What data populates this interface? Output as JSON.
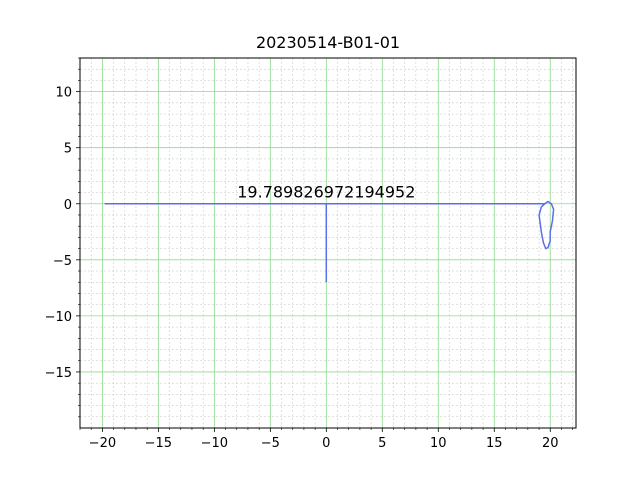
{
  "chart_data": {
    "type": "line",
    "title": "20230514-B01-01",
    "xlabel": "",
    "ylabel": "",
    "xlim": [
      -22.0,
      22.3
    ],
    "ylim": [
      -20.0,
      13.0
    ],
    "x_ticks": [
      -20,
      -15,
      -10,
      -5,
      0,
      5,
      10,
      15,
      20
    ],
    "x_tick_labels": [
      "−20",
      "−15",
      "−10",
      "−5",
      "0",
      "5",
      "10",
      "15",
      "20"
    ],
    "y_ticks": [
      10,
      5,
      0,
      -5,
      -10,
      -15
    ],
    "y_tick_labels": [
      "10",
      "5",
      "0",
      "−5",
      "−10",
      "−15"
    ],
    "grid": {
      "major": true,
      "minor": true,
      "major_color": "#8fd98f",
      "minor_color": "#c0c0c0"
    },
    "annotation": {
      "text": "19.789826972194952",
      "x": 0.0,
      "y": 0.2
    },
    "series": [
      {
        "color": "#5b6fe8",
        "points": [
          [
            -19.8,
            0.0
          ],
          [
            19.5,
            0.0
          ],
          [
            19.8,
            0.2
          ],
          [
            20.1,
            0.0
          ],
          [
            20.3,
            -0.5
          ],
          [
            20.2,
            -1.5
          ],
          [
            20.0,
            -2.5
          ],
          [
            20.0,
            -3.3
          ],
          [
            19.8,
            -3.9
          ],
          [
            19.6,
            -4.0
          ],
          [
            19.4,
            -3.5
          ],
          [
            19.2,
            -2.5
          ],
          [
            19.0,
            -1.0
          ],
          [
            19.2,
            -0.3
          ],
          [
            19.5,
            0.0
          ]
        ]
      },
      {
        "color": "#5b6fe8",
        "points": [
          [
            0.0,
            0.0
          ],
          [
            0.0,
            -7.0
          ]
        ]
      }
    ]
  }
}
